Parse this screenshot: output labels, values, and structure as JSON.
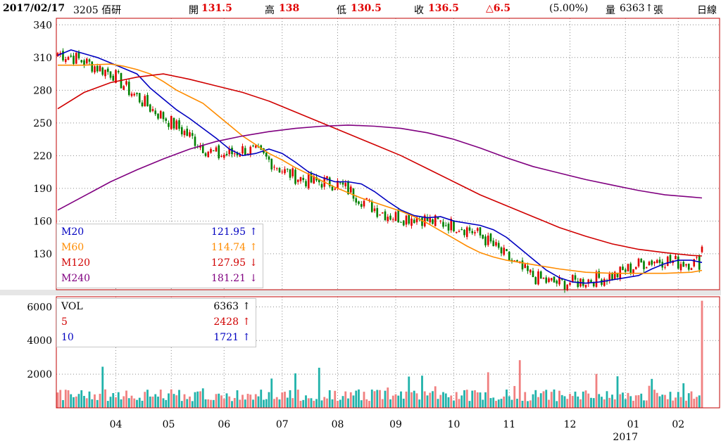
{
  "header": {
    "date": "2017/02/17",
    "stock": "3205 佰研",
    "open_label": "開",
    "open": "131.5",
    "high_label": "高",
    "high": "138",
    "low_label": "低",
    "low": "130.5",
    "close_label": "收",
    "close": "136.5",
    "change": "△6.5",
    "change_pct": "(5.00%)",
    "volume_label": "量",
    "volume": "6363",
    "volume_arrow": "↑",
    "volume_unit": "張",
    "period": "日線"
  },
  "colors": {
    "up": "#e00000",
    "down": "#008000",
    "m20": "#0000c0",
    "m60": "#ff8c00",
    "m120": "#d00000",
    "m240": "#800080",
    "vol_up": "#f08080",
    "vol_down": "#20b2aa",
    "frame": "#c00000",
    "grid": "#8c8c8c"
  },
  "price_legend": [
    {
      "name": "M20",
      "value": "121.95",
      "arrow": "↑",
      "color": "#0000c0"
    },
    {
      "name": "M60",
      "value": "114.74",
      "arrow": "↑",
      "color": "#ff8c00"
    },
    {
      "name": "M120",
      "value": "127.95",
      "arrow": "↓",
      "color": "#d00000"
    },
    {
      "name": "M240",
      "value": "181.21",
      "arrow": "↓",
      "color": "#800080"
    }
  ],
  "volume_legend": [
    {
      "name": "VOL",
      "value": "6363",
      "arrow": "↑",
      "color": "#000000"
    },
    {
      "name": "5",
      "value": "2428",
      "arrow": "↑",
      "color": "#d00000"
    },
    {
      "name": "10",
      "value": "1721",
      "arrow": "↑",
      "color": "#0000c0"
    }
  ],
  "chart_data": {
    "type": "candlestick",
    "price_axis": {
      "ticks": [
        340,
        310,
        280,
        250,
        220,
        190,
        160,
        130
      ],
      "range": [
        97,
        346
      ]
    },
    "volume_axis": {
      "ticks": [
        6000,
        4000,
        2000
      ],
      "range": [
        0,
        6600
      ]
    },
    "month_labels": [
      "04",
      "05",
      "06",
      "07",
      "08",
      "09",
      "10",
      "11",
      "12",
      "01",
      "02"
    ],
    "year_label": "2017",
    "grid": "dotted vertical at month starts, dotted horizontal at price and volume ticks",
    "last_bar": {
      "open": 131.5,
      "high": 138,
      "low": 130.5,
      "close": 136.5,
      "volume": 6363
    },
    "ma_current": {
      "M20": 121.95,
      "M60": 114.74,
      "M120": 127.95,
      "M240": 181.21
    },
    "vol_ma_current": {
      "5": 2428,
      "10": 1721
    },
    "series": [
      {
        "name": "M20",
        "points": [
          [
            0,
            312
          ],
          [
            5,
            317
          ],
          [
            15,
            310
          ],
          [
            25,
            300
          ],
          [
            30,
            295
          ],
          [
            35,
            282
          ],
          [
            40,
            272
          ],
          [
            45,
            262
          ],
          [
            50,
            254
          ],
          [
            55,
            245
          ],
          [
            60,
            236
          ],
          [
            65,
            226
          ],
          [
            70,
            220
          ],
          [
            75,
            222
          ],
          [
            80,
            226
          ],
          [
            85,
            222
          ],
          [
            90,
            214
          ],
          [
            95,
            205
          ],
          [
            100,
            200
          ],
          [
            105,
            196
          ],
          [
            110,
            196
          ],
          [
            115,
            194
          ],
          [
            120,
            187
          ],
          [
            125,
            178
          ],
          [
            130,
            170
          ],
          [
            135,
            165
          ],
          [
            140,
            163
          ],
          [
            145,
            164
          ],
          [
            150,
            160
          ],
          [
            155,
            158
          ],
          [
            160,
            156
          ],
          [
            165,
            152
          ],
          [
            170,
            145
          ],
          [
            175,
            135
          ],
          [
            180,
            125
          ],
          [
            185,
            115
          ],
          [
            190,
            108
          ],
          [
            195,
            104
          ],
          [
            200,
            103
          ],
          [
            205,
            104
          ],
          [
            210,
            106
          ],
          [
            215,
            108
          ],
          [
            220,
            110
          ],
          [
            225,
            116
          ],
          [
            230,
            121
          ],
          [
            235,
            124
          ],
          [
            240,
            124
          ],
          [
            244,
            121.95
          ]
        ]
      },
      {
        "name": "M60",
        "points": [
          [
            0,
            303
          ],
          [
            10,
            303
          ],
          [
            20,
            304
          ],
          [
            25,
            302
          ],
          [
            30,
            299
          ],
          [
            35,
            295
          ],
          [
            40,
            288
          ],
          [
            45,
            280
          ],
          [
            50,
            274
          ],
          [
            55,
            268
          ],
          [
            60,
            258
          ],
          [
            65,
            248
          ],
          [
            70,
            238
          ],
          [
            75,
            230
          ],
          [
            80,
            222
          ],
          [
            85,
            216
          ],
          [
            90,
            209
          ],
          [
            95,
            203
          ],
          [
            100,
            197
          ],
          [
            105,
            191
          ],
          [
            110,
            186
          ],
          [
            115,
            181
          ],
          [
            120,
            177
          ],
          [
            125,
            173
          ],
          [
            130,
            169
          ],
          [
            135,
            164
          ],
          [
            140,
            158
          ],
          [
            145,
            151
          ],
          [
            150,
            144
          ],
          [
            155,
            137
          ],
          [
            160,
            131
          ],
          [
            165,
            127
          ],
          [
            170,
            124
          ],
          [
            175,
            122
          ],
          [
            180,
            120
          ],
          [
            185,
            118
          ],
          [
            190,
            116
          ],
          [
            200,
            113
          ],
          [
            210,
            112
          ],
          [
            220,
            112
          ],
          [
            230,
            112
          ],
          [
            240,
            113
          ],
          [
            244,
            114.74
          ]
        ]
      },
      {
        "name": "M120",
        "points": [
          [
            0,
            263
          ],
          [
            10,
            278
          ],
          [
            20,
            287
          ],
          [
            30,
            292
          ],
          [
            40,
            295
          ],
          [
            50,
            290
          ],
          [
            60,
            284
          ],
          [
            70,
            278
          ],
          [
            80,
            270
          ],
          [
            90,
            260
          ],
          [
            100,
            250
          ],
          [
            110,
            240
          ],
          [
            120,
            230
          ],
          [
            130,
            220
          ],
          [
            140,
            208
          ],
          [
            150,
            196
          ],
          [
            160,
            184
          ],
          [
            170,
            174
          ],
          [
            180,
            164
          ],
          [
            190,
            154
          ],
          [
            200,
            146
          ],
          [
            210,
            139
          ],
          [
            220,
            134
          ],
          [
            230,
            131
          ],
          [
            240,
            128.5
          ],
          [
            244,
            127.95
          ]
        ]
      },
      {
        "name": "M240",
        "points": [
          [
            0,
            170
          ],
          [
            10,
            183
          ],
          [
            20,
            196
          ],
          [
            30,
            207
          ],
          [
            40,
            217
          ],
          [
            50,
            226
          ],
          [
            60,
            233
          ],
          [
            70,
            238
          ],
          [
            80,
            242
          ],
          [
            90,
            245
          ],
          [
            100,
            247
          ],
          [
            110,
            248
          ],
          [
            120,
            247
          ],
          [
            130,
            245
          ],
          [
            140,
            241
          ],
          [
            150,
            235
          ],
          [
            160,
            227
          ],
          [
            170,
            218
          ],
          [
            180,
            210
          ],
          [
            190,
            204
          ],
          [
            200,
            198
          ],
          [
            210,
            193
          ],
          [
            220,
            188
          ],
          [
            230,
            184
          ],
          [
            240,
            182
          ],
          [
            244,
            181.21
          ]
        ]
      }
    ]
  }
}
